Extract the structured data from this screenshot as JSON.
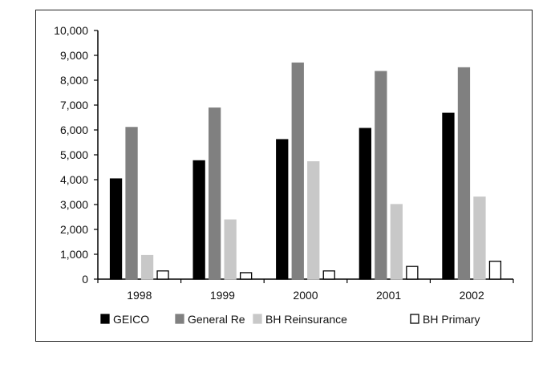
{
  "chart_data": {
    "type": "bar",
    "categories": [
      "1998",
      "1999",
      "2000",
      "2001",
      "2002"
    ],
    "series": [
      {
        "name": "GEICO",
        "values": [
          4030,
          4760,
          5610,
          6060,
          6670
        ],
        "color": "#000000",
        "stroke": "#000000"
      },
      {
        "name": "General Re",
        "values": [
          6100,
          6880,
          8690,
          8350,
          8500
        ],
        "color": "#808080",
        "stroke": "#808080"
      },
      {
        "name": "BH Reinsurance",
        "values": [
          950,
          2380,
          4720,
          3000,
          3300
        ],
        "color": "#c8c8c8",
        "stroke": "#c8c8c8"
      },
      {
        "name": "BH Primary",
        "values": [
          330,
          260,
          330,
          510,
          720
        ],
        "color": "#ffffff",
        "stroke": "#000000"
      }
    ],
    "ylim": [
      0,
      10000
    ],
    "yticks": [
      "0",
      "1,000",
      "2,000",
      "3,000",
      "4,000",
      "5,000",
      "6,000",
      "7,000",
      "8,000",
      "9,000",
      "10,000"
    ],
    "title": "",
    "xlabel": "",
    "ylabel": "",
    "legend_position": "bottom",
    "grid": false
  }
}
